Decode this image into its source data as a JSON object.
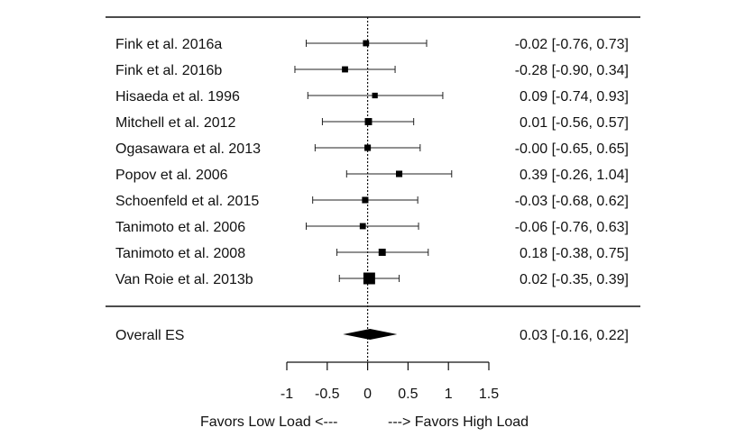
{
  "chart_data": {
    "type": "forest",
    "studies": [
      {
        "label": "Fink et al. 2016a",
        "es": -0.02,
        "ci": [
          -0.76,
          0.73
        ],
        "ci_text": "-0.02 [-0.76, 0.73]",
        "weight": 1
      },
      {
        "label": "Fink et al. 2016b",
        "es": -0.28,
        "ci": [
          -0.9,
          0.34
        ],
        "ci_text": "-0.28 [-0.90, 0.34]",
        "weight": 1
      },
      {
        "label": "Hisaeda et al. 1996",
        "es": 0.09,
        "ci": [
          -0.74,
          0.93
        ],
        "ci_text": "0.09 [-0.74, 0.93]",
        "weight": 0.8
      },
      {
        "label": "Mitchell et al. 2012",
        "es": 0.01,
        "ci": [
          -0.56,
          0.57
        ],
        "ci_text": "0.01 [-0.56, 0.57]",
        "weight": 1.4
      },
      {
        "label": "Ogasawara et al. 2013",
        "es": -0.0,
        "ci": [
          -0.65,
          0.65
        ],
        "ci_text": "-0.00 [-0.65, 0.65]",
        "weight": 1.1
      },
      {
        "label": "Popov et al. 2006",
        "es": 0.39,
        "ci": [
          -0.26,
          1.04
        ],
        "ci_text": "0.39 [-0.26, 1.04]",
        "weight": 1.1
      },
      {
        "label": "Schoenfeld et al. 2015",
        "es": -0.03,
        "ci": [
          -0.68,
          0.62
        ],
        "ci_text": "-0.03 [-0.68, 0.62]",
        "weight": 1.1
      },
      {
        "label": "Tanimoto et al. 2006",
        "es": -0.06,
        "ci": [
          -0.76,
          0.63
        ],
        "ci_text": "-0.06 [-0.76, 0.63]",
        "weight": 1
      },
      {
        "label": "Tanimoto et al. 2008",
        "es": 0.18,
        "ci": [
          -0.38,
          0.75
        ],
        "ci_text": "0.18 [-0.38, 0.75]",
        "weight": 1.4
      },
      {
        "label": "Van Roie et al. 2013b",
        "es": 0.02,
        "ci": [
          -0.35,
          0.39
        ],
        "ci_text": "0.02 [-0.35, 0.39]",
        "weight": 3.2
      }
    ],
    "overall": {
      "label": "Overall ES",
      "es": 0.03,
      "ci": [
        -0.16,
        0.22
      ],
      "ci_text": "0.03 [-0.16, 0.22]"
    },
    "xticks": [
      -1,
      -0.5,
      0,
      0.5,
      1,
      1.5
    ],
    "xtick_labels": [
      "-1",
      "-0.5",
      "0",
      "0.5",
      "1",
      "1.5"
    ],
    "xlim": [
      -1,
      1.5
    ],
    "reference_line": 0,
    "xlabel_left": "Favors Low Load <---",
    "xlabel_right": "---> Favors High Load"
  }
}
